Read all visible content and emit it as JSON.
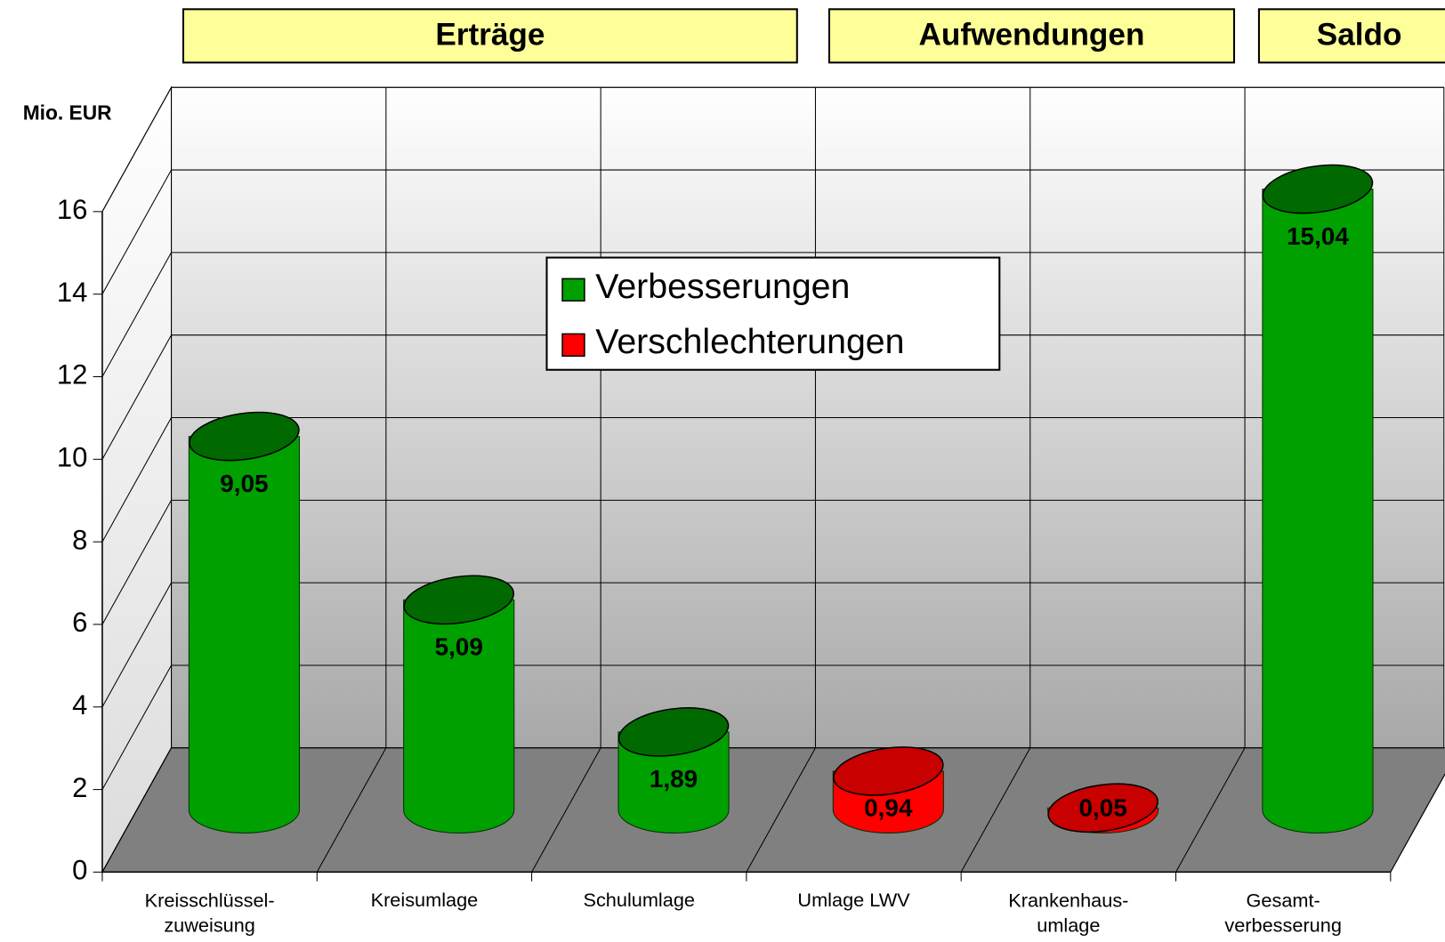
{
  "chart_data": {
    "type": "bar",
    "groups": [
      "Erträge",
      "Aufwendungen",
      "Saldo"
    ],
    "y_label": "Mio. EUR",
    "categories": [
      "Kreisschlüssel-\nzuweisung",
      "Kreisumlage",
      "Schulumlage",
      "Umlage LWV",
      "Krankenhaus-\numlage",
      "Gesamt-\nverbesserung"
    ],
    "series": [
      {
        "name": "Verbesserungen",
        "color": "#00a000",
        "top_color": "#006a00",
        "values": [
          9.05,
          5.09,
          1.89,
          null,
          null,
          15.04
        ],
        "value_labels": [
          "9,05",
          "5,09",
          "1,89",
          null,
          null,
          "15,04"
        ]
      },
      {
        "name": "Verschlechterungen",
        "color": "#ff0000",
        "top_color": "#c80000",
        "values": [
          null,
          null,
          null,
          0.94,
          0.05,
          null
        ],
        "value_labels": [
          null,
          null,
          null,
          "0,94",
          "0,05",
          null
        ]
      }
    ],
    "ylim": [
      0,
      16
    ],
    "yticks": [
      0,
      2,
      4,
      6,
      8,
      10,
      12,
      14,
      16
    ],
    "grid": true
  }
}
